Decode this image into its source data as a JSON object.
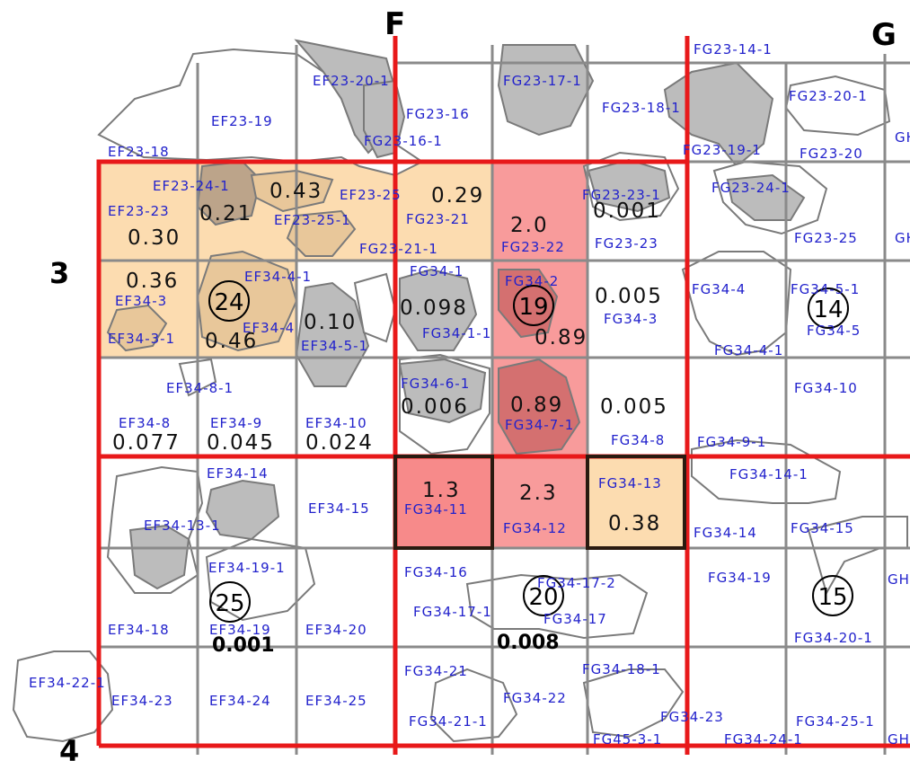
{
  "grid_columns": [
    "F",
    "G"
  ],
  "grid_rows": [
    "3",
    "4"
  ],
  "colors": {
    "grid_line": "#8a8a8a",
    "major_line": "#e8191a",
    "parcel_fill": "#bcbcbc",
    "parcel_stroke": "#7a7a7a",
    "low_fill": "#fcdcb0",
    "high_fill": "#f78a8a",
    "label_color": "#2222cc"
  },
  "cell_labels": [
    "EF23-20-1",
    "FG23-17-1",
    "FG23-14-1",
    "EF23-19",
    "FG23-16",
    "FG23-18-1",
    "FG23-20-1",
    "FG23-16-1",
    "EF23-18",
    "FG23-19-1",
    "FG23-20",
    "EF23-24-1",
    "EF23-25",
    "FG23-23-1",
    "FG23-24-1",
    "EF23-23",
    "EF23-25-1",
    "FG23-21",
    "FG23-22",
    "FG23-23",
    "FG23-25",
    "FG23-21-1",
    "EF34-4-1",
    "FG34-1",
    "FG34-2",
    "FG34-4",
    "FG34-5-1",
    "EF34-3",
    "FG34-3",
    "EF34-4",
    "FG34-1-1",
    "FG34-5",
    "EF34-3-1",
    "EF34-5-1",
    "FG34-4-1",
    "EF34-8-1",
    "FG34-6-1",
    "FG34-10",
    "FG34-7-1",
    "EF34-8",
    "EF34-9",
    "EF34-10",
    "FG34-8",
    "FG34-9-1",
    "EF34-14",
    "FG34-14-1",
    "FG34-13",
    "EF34-15",
    "FG34-11",
    "EF34-13-1",
    "FG34-12",
    "FG34-14",
    "FG34-15",
    "EF34-19-1",
    "FG34-16",
    "FG34-17-2",
    "FG34-19",
    "FG34-17-1",
    "FG34-17",
    "EF34-18",
    "EF34-19",
    "EF34-20",
    "FG34-20-1",
    "EF34-22-1",
    "FG34-21",
    "FG34-18-1",
    "FG34-22",
    "EF34-23",
    "EF34-24",
    "EF34-25",
    "FG34-23",
    "FG34-21-1",
    "FG34-25-1",
    "FG45-3-1",
    "FG34-24-1",
    "GH",
    "GH",
    "GH",
    "GH"
  ],
  "values": [
    "0.43",
    "0.29",
    "0.21",
    "2.0",
    "0.001",
    "0.30",
    "0.36",
    "0.098",
    "0.005",
    "0.10",
    "0.46",
    "0.89",
    "0.006",
    "0.89",
    "0.005",
    "0.077",
    "0.045",
    "0.024",
    "1.3",
    "2.3",
    "0.38",
    "0.001",
    "0.008"
  ],
  "circled_numbers": [
    "24",
    "19",
    "14",
    "25",
    "20",
    "15"
  ]
}
